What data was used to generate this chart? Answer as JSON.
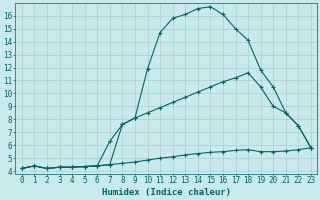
{
  "xlabel": "Humidex (Indice chaleur)",
  "bg_color": "#c8eaea",
  "grid_color": "#b0cccc",
  "line_color": "#006666",
  "xlim": [
    -0.5,
    23.5
  ],
  "ylim": [
    3.8,
    17.0
  ],
  "xticks": [
    0,
    1,
    2,
    3,
    4,
    5,
    6,
    7,
    8,
    9,
    10,
    11,
    12,
    13,
    14,
    15,
    16,
    17,
    18,
    19,
    20,
    21,
    22,
    23
  ],
  "yticks": [
    4,
    5,
    6,
    7,
    8,
    9,
    10,
    11,
    12,
    13,
    14,
    15,
    16
  ],
  "line1_x": [
    0,
    1,
    2,
    3,
    4,
    5,
    6,
    7,
    8,
    9,
    10,
    11,
    12,
    13,
    14,
    15,
    16,
    17,
    18,
    19,
    20,
    21,
    22,
    23
  ],
  "line1_y": [
    4.2,
    4.4,
    4.2,
    4.3,
    4.3,
    4.35,
    4.4,
    4.5,
    7.6,
    8.1,
    11.9,
    14.7,
    15.8,
    16.1,
    16.55,
    16.7,
    16.1,
    15.0,
    14.1,
    11.8,
    10.5,
    8.5,
    7.5,
    5.8
  ],
  "line2_x": [
    0,
    1,
    2,
    3,
    4,
    5,
    6,
    7,
    8,
    9,
    10,
    11,
    12,
    13,
    14,
    15,
    16,
    17,
    18,
    19,
    20,
    21,
    22,
    23
  ],
  "line2_y": [
    4.2,
    4.4,
    4.2,
    4.3,
    4.3,
    4.35,
    4.4,
    6.3,
    7.6,
    8.1,
    8.5,
    8.9,
    9.3,
    9.7,
    10.1,
    10.5,
    10.9,
    11.2,
    11.6,
    10.5,
    9.0,
    8.5,
    7.5,
    5.8
  ],
  "line3_x": [
    0,
    1,
    2,
    3,
    4,
    5,
    6,
    7,
    8,
    9,
    10,
    11,
    12,
    13,
    14,
    15,
    16,
    17,
    18,
    19,
    20,
    21,
    22,
    23
  ],
  "line3_y": [
    4.2,
    4.4,
    4.2,
    4.3,
    4.3,
    4.35,
    4.4,
    4.5,
    4.6,
    4.7,
    4.85,
    5.0,
    5.1,
    5.25,
    5.35,
    5.45,
    5.5,
    5.6,
    5.65,
    5.5,
    5.5,
    5.55,
    5.65,
    5.8
  ]
}
